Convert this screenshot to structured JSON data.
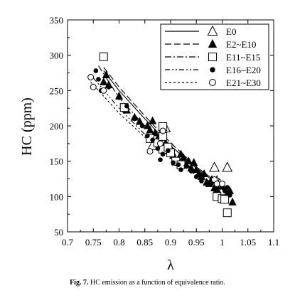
{
  "caption": {
    "label": "Fig. 7.",
    "text": "HC emission as a function of equivalence ratio."
  },
  "chart_data": {
    "type": "scatter",
    "title": "",
    "xlabel": "λ",
    "ylabel": "HC (ppm)",
    "xlim": [
      0.7,
      1.1
    ],
    "ylim": [
      50,
      350
    ],
    "xticks": [
      "0.7",
      "0.75",
      "0.8",
      "0.85",
      "0.9",
      "0.95",
      "1",
      "1.05",
      "1.1"
    ],
    "yticks": [
      "50",
      "100",
      "150",
      "200",
      "250",
      "300",
      "350"
    ],
    "legend_position": "top-right",
    "series": [
      {
        "name": "E0",
        "marker": "triangle-open",
        "line": "solid",
        "points": [
          [
            0.985,
            141
          ],
          [
            0.99,
            122
          ],
          [
            0.995,
            118
          ],
          [
            1.01,
            141
          ],
          [
            0.89,
            197
          ],
          [
            0.865,
            172
          ]
        ],
        "fit": [
          [
            0.77,
            278
          ],
          [
            0.8,
            250
          ],
          [
            0.85,
            210
          ],
          [
            0.9,
            172
          ],
          [
            0.95,
            140
          ],
          [
            1.0,
            113
          ],
          [
            1.02,
            104
          ]
        ]
      },
      {
        "name": "E2~E10",
        "marker": "triangle-filled",
        "line": "dash",
        "points": [
          [
            0.77,
            262
          ],
          [
            0.775,
            272
          ],
          [
            0.78,
            258
          ],
          [
            0.8,
            242
          ],
          [
            0.815,
            222
          ],
          [
            0.83,
            212
          ],
          [
            0.84,
            206
          ],
          [
            0.855,
            200
          ],
          [
            0.86,
            194
          ],
          [
            0.865,
            207
          ],
          [
            0.87,
            190
          ],
          [
            0.875,
            182
          ],
          [
            0.88,
            170
          ],
          [
            0.885,
            185
          ],
          [
            0.89,
            175
          ],
          [
            0.9,
            168
          ],
          [
            0.905,
            158
          ],
          [
            0.91,
            152
          ],
          [
            0.915,
            148
          ],
          [
            0.92,
            160
          ],
          [
            0.925,
            155
          ],
          [
            0.93,
            145
          ],
          [
            0.935,
            150
          ],
          [
            0.94,
            140
          ],
          [
            0.945,
            148
          ],
          [
            0.95,
            138
          ],
          [
            0.955,
            132
          ],
          [
            0.96,
            128
          ],
          [
            0.965,
            132
          ],
          [
            0.97,
            120
          ],
          [
            0.975,
            118
          ],
          [
            0.98,
            124
          ],
          [
            0.985,
            112
          ],
          [
            0.99,
            110
          ],
          [
            1.0,
            115
          ],
          [
            1.01,
            104
          ],
          [
            1.015,
            108
          ],
          [
            1.02,
            92
          ]
        ],
        "fit": [
          [
            0.77,
            283
          ],
          [
            0.8,
            255
          ],
          [
            0.85,
            214
          ],
          [
            0.9,
            176
          ],
          [
            0.95,
            142
          ],
          [
            1.0,
            115
          ],
          [
            1.02,
            106
          ]
        ]
      },
      {
        "name": "E11~E15",
        "marker": "square-open",
        "line": "dash-dot",
        "points": [
          [
            0.77,
            298
          ],
          [
            0.81,
            226
          ],
          [
            0.86,
            182
          ],
          [
            0.875,
            176
          ],
          [
            0.885,
            167
          ],
          [
            0.895,
            170
          ],
          [
            0.9,
            162
          ],
          [
            0.91,
            150
          ],
          [
            0.92,
            145
          ],
          [
            0.99,
            100
          ],
          [
            1.0,
            97
          ],
          [
            1.005,
            96
          ],
          [
            1.01,
            77
          ],
          [
            0.885,
            199
          ],
          [
            0.885,
            185
          ]
        ],
        "fit": [
          [
            0.76,
            285
          ],
          [
            0.8,
            240
          ],
          [
            0.85,
            200
          ],
          [
            0.9,
            165
          ],
          [
            0.95,
            135
          ],
          [
            1.0,
            108
          ],
          [
            1.02,
            100
          ]
        ]
      },
      {
        "name": "E16~E20",
        "marker": "circle-filled",
        "line": "dash-dot-dot",
        "points": [
          [
            0.755,
            278
          ],
          [
            0.76,
            266
          ],
          [
            0.765,
            250
          ],
          [
            0.78,
            255
          ],
          [
            0.8,
            240
          ],
          [
            0.815,
            228
          ],
          [
            0.83,
            210
          ],
          [
            0.845,
            200
          ],
          [
            0.855,
            186
          ],
          [
            0.865,
            180
          ],
          [
            0.875,
            168
          ],
          [
            0.88,
            152
          ],
          [
            0.885,
            160
          ],
          [
            0.895,
            165
          ],
          [
            0.905,
            148
          ],
          [
            0.915,
            145
          ],
          [
            0.92,
            138
          ],
          [
            0.93,
            143
          ],
          [
            0.94,
            136
          ],
          [
            0.95,
            128
          ],
          [
            0.955,
            132
          ],
          [
            0.96,
            122
          ],
          [
            0.97,
            118
          ],
          [
            0.98,
            120
          ],
          [
            0.99,
            115
          ],
          [
            1.005,
            108
          ],
          [
            1.01,
            113
          ],
          [
            1.015,
            102
          ]
        ],
        "fit": [
          [
            0.75,
            268
          ],
          [
            0.8,
            225
          ],
          [
            0.85,
            188
          ],
          [
            0.9,
            158
          ],
          [
            0.95,
            132
          ],
          [
            1.0,
            110
          ],
          [
            1.02,
            102
          ]
        ]
      },
      {
        "name": "E21~E30",
        "marker": "circle-open",
        "line": "short-dash",
        "points": [
          [
            0.745,
            269
          ],
          [
            0.75,
            255
          ],
          [
            0.77,
            250
          ],
          [
            0.86,
            164
          ],
          [
            0.88,
            175
          ],
          [
            0.885,
            193
          ],
          [
            0.985,
            124
          ],
          [
            0.99,
            118
          ],
          [
            1.0,
            118
          ]
        ],
        "fit": [
          [
            0.745,
            262
          ],
          [
            0.8,
            218
          ],
          [
            0.85,
            184
          ],
          [
            0.9,
            156
          ],
          [
            0.95,
            130
          ],
          [
            1.0,
            110
          ],
          [
            1.02,
            103
          ]
        ]
      }
    ]
  }
}
